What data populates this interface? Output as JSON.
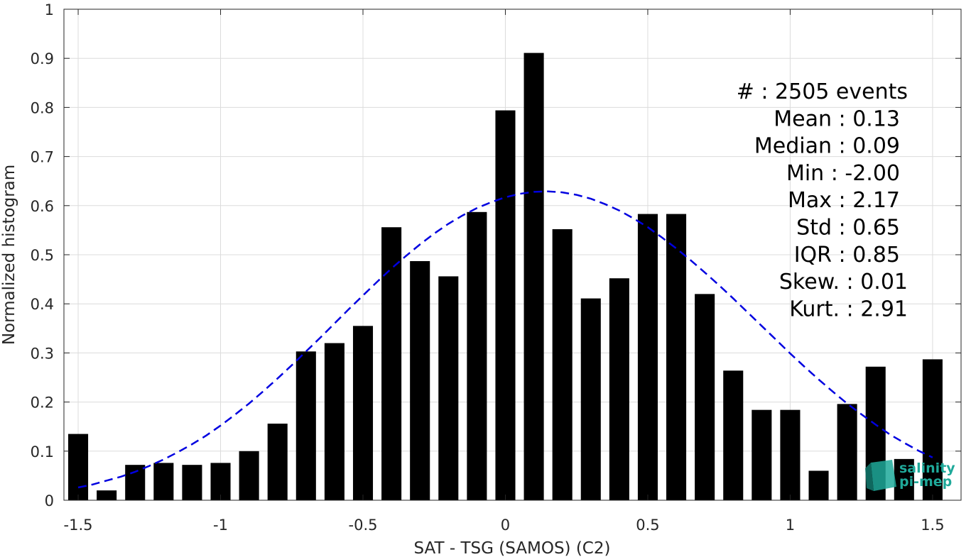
{
  "chart_data": {
    "type": "bar",
    "xlabel": "SAT - TSG (SAMOS) (C2)",
    "ylabel": "Normalized histogram",
    "xlim": [
      -1.55,
      1.6
    ],
    "ylim": [
      0,
      1
    ],
    "xticks": [
      -1.5,
      -1,
      -0.5,
      0,
      0.5,
      1,
      1.5
    ],
    "xtick_labels": [
      "-1.5",
      "-1",
      "-0.5",
      "0",
      "0.5",
      "1",
      "1.5"
    ],
    "yticks": [
      0,
      0.1,
      0.2,
      0.3,
      0.4,
      0.5,
      0.6,
      0.7,
      0.8,
      0.9,
      1
    ],
    "ytick_labels": [
      "0",
      "0.1",
      "0.2",
      "0.3",
      "0.4",
      "0.5",
      "0.6",
      "0.7",
      "0.8",
      "0.9",
      "1"
    ],
    "grid": true,
    "bar_width": 0.07,
    "bar_color": "#000000",
    "bins": [
      -1.5,
      -1.4,
      -1.3,
      -1.2,
      -1.1,
      -1.0,
      -0.9,
      -0.8,
      -0.7,
      -0.6,
      -0.5,
      -0.4,
      -0.3,
      -0.2,
      -0.1,
      0.0,
      0.1,
      0.2,
      0.3,
      0.4,
      0.5,
      0.6,
      0.7,
      0.8,
      0.9,
      1.0,
      1.1,
      1.2,
      1.3,
      1.4,
      1.5
    ],
    "values": [
      0.135,
      0.02,
      0.072,
      0.076,
      0.072,
      0.076,
      0.1,
      0.156,
      0.303,
      0.32,
      0.355,
      0.556,
      0.487,
      0.456,
      0.587,
      0.794,
      0.911,
      0.552,
      0.411,
      0.452,
      0.583,
      0.583,
      0.42,
      0.264,
      0.184,
      0.184,
      0.06,
      0.196,
      0.272,
      0.084,
      0.287
    ],
    "fit": {
      "type": "normal",
      "style": "dashed",
      "color": "#0000e0",
      "x": [
        -1.5,
        -1.45,
        -1.4,
        -1.35,
        -1.3,
        -1.25,
        -1.2,
        -1.15,
        -1.1,
        -1.05,
        -1.0,
        -0.95,
        -0.9,
        -0.85,
        -0.8,
        -0.75,
        -0.7,
        -0.65,
        -0.6,
        -0.55,
        -0.5,
        -0.45,
        -0.4,
        -0.35,
        -0.3,
        -0.25,
        -0.2,
        -0.15,
        -0.1,
        -0.05,
        0.0,
        0.05,
        0.1,
        0.15,
        0.2,
        0.25,
        0.3,
        0.35,
        0.4,
        0.45,
        0.5,
        0.55,
        0.6,
        0.65,
        0.7,
        0.75,
        0.8,
        0.85,
        0.9,
        0.95,
        1.0,
        1.05,
        1.1,
        1.15,
        1.2,
        1.25,
        1.3,
        1.35,
        1.4,
        1.45,
        1.5
      ],
      "y": [
        0.026,
        0.032,
        0.04,
        0.048,
        0.058,
        0.07,
        0.083,
        0.098,
        0.114,
        0.132,
        0.152,
        0.174,
        0.197,
        0.222,
        0.248,
        0.275,
        0.303,
        0.331,
        0.36,
        0.389,
        0.417,
        0.445,
        0.472,
        0.497,
        0.521,
        0.543,
        0.563,
        0.58,
        0.595,
        0.607,
        0.617,
        0.624,
        0.628,
        0.629,
        0.627,
        0.622,
        0.614,
        0.603,
        0.59,
        0.574,
        0.556,
        0.535,
        0.513,
        0.489,
        0.464,
        0.438,
        0.411,
        0.383,
        0.355,
        0.327,
        0.299,
        0.272,
        0.246,
        0.221,
        0.197,
        0.175,
        0.154,
        0.134,
        0.117,
        0.101,
        0.087
      ]
    },
    "stats": [
      {
        "label": "#  : 2505 events"
      },
      {
        "label": "Mean : 0.13"
      },
      {
        "label": "Median : 0.09"
      },
      {
        "label": "Min : -2.00"
      },
      {
        "label": "Max : 2.17"
      },
      {
        "label": "Std : 0.65"
      },
      {
        "label": "IQR : 0.85"
      },
      {
        "label": "Skew. : 0.01"
      },
      {
        "label": "Kurt. : 2.91"
      }
    ]
  },
  "logo": {
    "line1": "salinity",
    "line2": "pi-mep",
    "color": "#1fa99a"
  }
}
